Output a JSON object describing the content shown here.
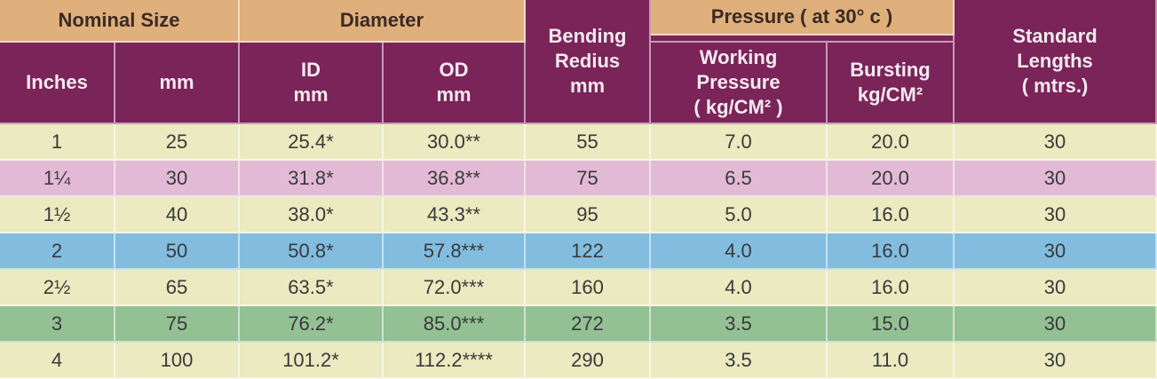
{
  "table": {
    "header": {
      "nominal_size": "Nominal Size",
      "diameter": "Diameter",
      "pressure": "Pressure ( at 30° c )",
      "bending_radius": [
        "Bending",
        "Redius",
        "mm"
      ],
      "standard_lengths": [
        "Standard",
        "Lengths",
        "( mtrs.)"
      ],
      "columns": [
        [
          "Inches"
        ],
        [
          "mm"
        ],
        [
          "ID",
          "mm"
        ],
        [
          "OD",
          "mm"
        ],
        [
          "Working",
          "Pressure",
          "( kg/CM² )"
        ],
        [
          "Bursting",
          "kg/CM²"
        ]
      ]
    },
    "rows": [
      [
        "1",
        "25",
        "25.4*",
        "30.0**",
        "55",
        "7.0",
        "20.0",
        "30"
      ],
      [
        "1¼",
        "30",
        "31.8*",
        "36.8**",
        "75",
        "6.5",
        "20.0",
        "30"
      ],
      [
        "1½",
        "40",
        "38.0*",
        "43.3**",
        "95",
        "5.0",
        "16.0",
        "30"
      ],
      [
        "2",
        "50",
        "50.8*",
        "57.8***",
        "122",
        "4.0",
        "16.0",
        "30"
      ],
      [
        "2½",
        "65",
        "63.5*",
        "72.0***",
        "160",
        "4.0",
        "16.0",
        "30"
      ],
      [
        "3",
        "75",
        "76.2*",
        "85.0***",
        "272",
        "3.5",
        "15.0",
        "30"
      ],
      [
        "4",
        "100",
        "101.2*",
        "112.2****",
        "290",
        "3.5",
        "11.0",
        "30"
      ]
    ]
  }
}
